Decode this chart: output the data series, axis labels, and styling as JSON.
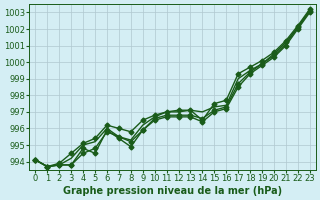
{
  "title": "Graphe pression niveau de la mer (hPa)",
  "xlabel": "Graphe pression niveau de la mer (hPa)",
  "ylim": [
    993.5,
    1003.5
  ],
  "xlim": [
    -0.5,
    23.5
  ],
  "yticks": [
    994,
    995,
    996,
    997,
    998,
    999,
    1000,
    1001,
    1002,
    1003
  ],
  "xticks": [
    0,
    1,
    2,
    3,
    4,
    5,
    6,
    7,
    8,
    9,
    10,
    11,
    12,
    13,
    14,
    15,
    16,
    17,
    18,
    19,
    20,
    21,
    22,
    23
  ],
  "bg_color": "#d4eef4",
  "grid_color": "#b0c8d0",
  "line_color": "#1a5c1a",
  "lines": [
    [
      994.1,
      993.7,
      993.8,
      993.8,
      994.8,
      994.5,
      995.9,
      995.4,
      994.9,
      995.9,
      996.5,
      996.7,
      996.7,
      996.7,
      996.4,
      997.0,
      997.2,
      998.5,
      999.3,
      999.8,
      1000.3,
      1001.0,
      1002.0,
      1003.0
    ],
    [
      994.1,
      993.7,
      993.8,
      994.2,
      995.0,
      995.2,
      996.0,
      995.5,
      995.3,
      996.2,
      996.7,
      997.0,
      997.0,
      997.1,
      997.0,
      997.3,
      997.4,
      999.0,
      999.5,
      999.9,
      1000.4,
      1001.1,
      1002.1,
      1003.1
    ],
    [
      994.1,
      993.7,
      993.9,
      994.5,
      995.1,
      995.4,
      996.2,
      996.0,
      995.8,
      996.5,
      996.8,
      997.0,
      997.1,
      997.1,
      996.5,
      997.5,
      997.7,
      999.3,
      999.7,
      1000.1,
      1000.6,
      1001.3,
      1002.2,
      1003.2
    ]
  ],
  "marker_lines": [
    0,
    2
  ],
  "figsize": [
    3.2,
    2.0
  ],
  "dpi": 100,
  "tick_fontsize": 6,
  "label_fontsize": 7,
  "linewidth": 1.0,
  "markersize": 2.5
}
